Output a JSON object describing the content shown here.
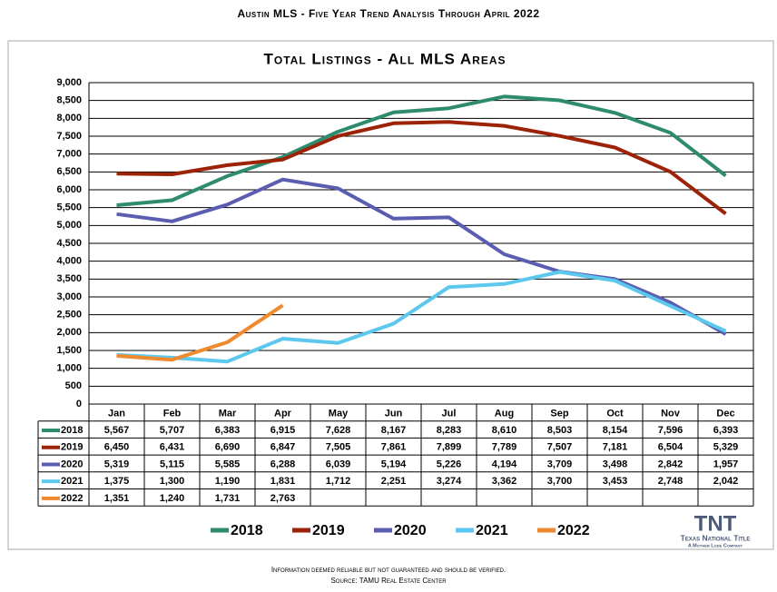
{
  "header": "Austin MLS - Five Year Trend Analysis Through April 2022",
  "chart_data": {
    "type": "line",
    "title": "Total Listings - All MLS Areas",
    "categories": [
      "Jan",
      "Feb",
      "Mar",
      "Apr",
      "May",
      "Jun",
      "Jul",
      "Aug",
      "Sep",
      "Oct",
      "Nov",
      "Dec"
    ],
    "ylim": [
      0,
      9000
    ],
    "yticks": [
      0,
      500,
      {
        "value": 1000,
        "label": "1,000"
      },
      {
        "value": 1500,
        "label": "1,500"
      },
      {
        "value": 2000,
        "label": "2,000"
      },
      {
        "value": 2500,
        "label": "2,500"
      },
      {
        "value": 3000,
        "label": "3,000"
      },
      {
        "value": 3500,
        "label": "3,500"
      },
      {
        "value": 4000,
        "label": "4,000"
      },
      {
        "value": 4500,
        "label": "4,500"
      },
      {
        "value": 5000,
        "label": "5,000"
      },
      {
        "value": 5500,
        "label": "5,500"
      },
      {
        "value": 6000,
        "label": "6,000"
      },
      {
        "value": 6500,
        "label": "6,500"
      },
      {
        "value": 7000,
        "label": "7,000"
      },
      {
        "value": 7500,
        "label": "7,500"
      },
      {
        "value": 8000,
        "label": "8,000"
      },
      {
        "value": 8500,
        "label": "8,500"
      },
      {
        "value": 9000,
        "label": "9,000"
      }
    ],
    "grid": true,
    "series": [
      {
        "name": "2018",
        "color": "#2e8b6e",
        "values": [
          5567,
          5707,
          6383,
          6915,
          7628,
          8167,
          8283,
          8610,
          8503,
          8154,
          7596,
          6393
        ],
        "value_labels": [
          "5,567",
          "5,707",
          "6,383",
          "6,915",
          "7,628",
          "8,167",
          "8,283",
          "8,610",
          "8,503",
          "8,154",
          "7,596",
          "6,393"
        ]
      },
      {
        "name": "2019",
        "color": "#9c2208",
        "values": [
          6450,
          6431,
          6690,
          6847,
          7505,
          7861,
          7899,
          7789,
          7507,
          7181,
          6504,
          5329
        ],
        "value_labels": [
          "6,450",
          "6,431",
          "6,690",
          "6,847",
          "7,505",
          "7,861",
          "7,899",
          "7,789",
          "7,507",
          "7,181",
          "6,504",
          "5,329"
        ]
      },
      {
        "name": "2020",
        "color": "#5a5db0",
        "values": [
          5319,
          5115,
          5585,
          6288,
          6039,
          5194,
          5226,
          4194,
          3709,
          3498,
          2842,
          1957
        ],
        "value_labels": [
          "5,319",
          "5,115",
          "5,585",
          "6,288",
          "6,039",
          "5,194",
          "5,226",
          "4,194",
          "3,709",
          "3,498",
          "2,842",
          "1,957"
        ]
      },
      {
        "name": "2021",
        "color": "#5cc8ee",
        "values": [
          1375,
          1300,
          1190,
          1831,
          1712,
          2251,
          3274,
          3362,
          3700,
          3453,
          2748,
          2042
        ],
        "value_labels": [
          "1,375",
          "1,300",
          "1,190",
          "1,831",
          "1,712",
          "2,251",
          "3,274",
          "3,362",
          "3,700",
          "3,453",
          "2,748",
          "2,042"
        ]
      },
      {
        "name": "2022",
        "color": "#f08a2e",
        "values": [
          1351,
          1240,
          1731,
          2763,
          null,
          null,
          null,
          null,
          null,
          null,
          null,
          null
        ],
        "value_labels": [
          "1,351",
          "1,240",
          "1,731",
          "2,763",
          null,
          null,
          null,
          null,
          null,
          null,
          null,
          null
        ]
      }
    ]
  },
  "logo": {
    "mark": "TNT",
    "name": "Texas National Title",
    "tagline": "A Mother Lode Company"
  },
  "footer": [
    "Information deemed reliable but not guaranteed and should be verified.",
    "Source: TAMU Real Estate Center"
  ]
}
